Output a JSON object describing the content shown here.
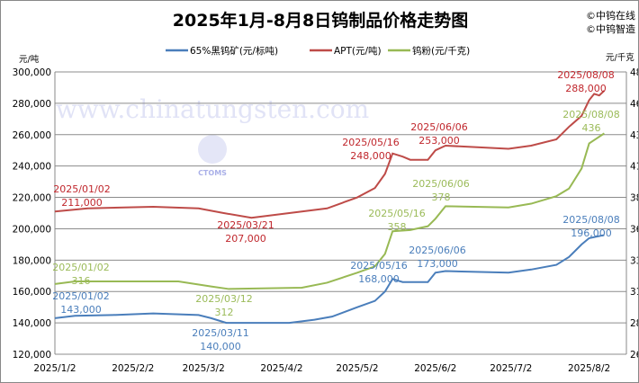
{
  "chart_data": {
    "type": "line",
    "title": "2025年1月-8月8日钨制品价格走势图",
    "source_marks": [
      "©中钨在线",
      "©中钨智造"
    ],
    "watermark": [
      "www.chinatungsten.com",
      "CTOMS"
    ],
    "ylabel_left": "元/吨",
    "ylabel_right": "元/千克",
    "ylim_left": [
      120000,
      300000
    ],
    "ylim_right": [
      260,
      485
    ],
    "yticks_left": [
      "120,000",
      "140,000",
      "160,000",
      "180,000",
      "200,000",
      "220,000",
      "240,000",
      "260,000",
      "280,000",
      "300,000"
    ],
    "yticks_right": [
      "260",
      "285",
      "310",
      "335",
      "360",
      "385",
      "410",
      "435",
      "460",
      "485"
    ],
    "xticks": [
      "2025/1/2",
      "2025/2/2",
      "2025/3/2",
      "2025/4/2",
      "2025/5/2",
      "2025/6/2",
      "2025/7/2",
      "2025/8/2"
    ],
    "grid": "horizontal",
    "legend_position": "top",
    "series": [
      {
        "name": "65%黑钨矿(元/标吨)",
        "axis": "left",
        "color": "#4a7ebb",
        "points": [
          [
            "2025-01-02",
            143000
          ],
          [
            "2025-01-10",
            144500
          ],
          [
            "2025-01-25",
            145000
          ],
          [
            "2025-02-10",
            146000
          ],
          [
            "2025-02-28",
            145000
          ],
          [
            "2025-03-05",
            143000
          ],
          [
            "2025-03-11",
            140000
          ],
          [
            "2025-04-05",
            140000
          ],
          [
            "2025-04-15",
            142000
          ],
          [
            "2025-04-22",
            144000
          ],
          [
            "2025-05-02",
            150000
          ],
          [
            "2025-05-09",
            154000
          ],
          [
            "2025-05-13",
            160000
          ],
          [
            "2025-05-16",
            168000
          ],
          [
            "2025-05-20",
            166000
          ],
          [
            "2025-05-30",
            166000
          ],
          [
            "2025-06-02",
            172000
          ],
          [
            "2025-06-06",
            173000
          ],
          [
            "2025-07-01",
            172000
          ],
          [
            "2025-07-10",
            174000
          ],
          [
            "2025-07-20",
            177000
          ],
          [
            "2025-07-25",
            182000
          ],
          [
            "2025-07-30",
            190000
          ],
          [
            "2025-08-02",
            194000
          ],
          [
            "2025-08-05",
            195000
          ],
          [
            "2025-08-08",
            196000
          ]
        ]
      },
      {
        "name": "APT(元/吨)",
        "axis": "left",
        "color": "#be4b48",
        "points": [
          [
            "2025-01-02",
            211000
          ],
          [
            "2025-01-15",
            213000
          ],
          [
            "2025-02-10",
            214000
          ],
          [
            "2025-02-28",
            213000
          ],
          [
            "2025-03-10",
            210000
          ],
          [
            "2025-03-21",
            207000
          ],
          [
            "2025-04-05",
            210000
          ],
          [
            "2025-04-20",
            213000
          ],
          [
            "2025-05-02",
            220000
          ],
          [
            "2025-05-09",
            226000
          ],
          [
            "2025-05-13",
            235000
          ],
          [
            "2025-05-16",
            248000
          ],
          [
            "2025-05-20",
            246000
          ],
          [
            "2025-05-23",
            244000
          ],
          [
            "2025-05-30",
            244000
          ],
          [
            "2025-06-02",
            250000
          ],
          [
            "2025-06-06",
            253000
          ],
          [
            "2025-07-01",
            251000
          ],
          [
            "2025-07-10",
            253000
          ],
          [
            "2025-07-20",
            257000
          ],
          [
            "2025-07-25",
            265000
          ],
          [
            "2025-07-30",
            272000
          ],
          [
            "2025-08-02",
            282000
          ],
          [
            "2025-08-04",
            286000
          ],
          [
            "2025-08-06",
            285000
          ],
          [
            "2025-08-08",
            288000
          ]
        ]
      },
      {
        "name": "钨粉(元/千克)",
        "axis": "right",
        "color": "#98b954",
        "points": [
          [
            "2025-01-02",
            316
          ],
          [
            "2025-01-10",
            318
          ],
          [
            "2025-02-20",
            318
          ],
          [
            "2025-03-05",
            314
          ],
          [
            "2025-03-12",
            312
          ],
          [
            "2025-04-10",
            313
          ],
          [
            "2025-04-20",
            317
          ],
          [
            "2025-05-02",
            325
          ],
          [
            "2025-05-09",
            330
          ],
          [
            "2025-05-13",
            340
          ],
          [
            "2025-05-16",
            358
          ],
          [
            "2025-05-23",
            359
          ],
          [
            "2025-05-30",
            362
          ],
          [
            "2025-06-02",
            368
          ],
          [
            "2025-06-06",
            378
          ],
          [
            "2025-07-01",
            377
          ],
          [
            "2025-07-10",
            380
          ],
          [
            "2025-07-20",
            386
          ],
          [
            "2025-07-25",
            392
          ],
          [
            "2025-07-30",
            408
          ],
          [
            "2025-08-02",
            428
          ],
          [
            "2025-08-05",
            432
          ],
          [
            "2025-08-08",
            436
          ]
        ]
      }
    ],
    "annotations": [
      {
        "series": 0,
        "date": "2025/01/02",
        "value": "143,000"
      },
      {
        "series": 0,
        "date": "2025/03/11",
        "value": "140,000"
      },
      {
        "series": 0,
        "date": "2025/05/16",
        "value": "168,000"
      },
      {
        "series": 0,
        "date": "2025/06/06",
        "value": "173,000"
      },
      {
        "series": 0,
        "date": "2025/08/08",
        "value": "196,000"
      },
      {
        "series": 1,
        "date": "2025/01/02",
        "value": "211,000"
      },
      {
        "series": 1,
        "date": "2025/03/21",
        "value": "207,000"
      },
      {
        "series": 1,
        "date": "2025/05/16",
        "value": "248,000"
      },
      {
        "series": 1,
        "date": "2025/06/06",
        "value": "253,000"
      },
      {
        "series": 1,
        "date": "2025/08/08",
        "value": "288,000"
      },
      {
        "series": 2,
        "date": "2025/01/02",
        "value": "316"
      },
      {
        "series": 2,
        "date": "2025/03/12",
        "value": "312"
      },
      {
        "series": 2,
        "date": "2025/05/16",
        "value": "358"
      },
      {
        "series": 2,
        "date": "2025/06/06",
        "value": "378"
      },
      {
        "series": 2,
        "date": "2025/08/08",
        "value": "436"
      }
    ],
    "annotation_colors": [
      "#4a7ebb",
      "#c0272d",
      "#9bbb59"
    ]
  }
}
